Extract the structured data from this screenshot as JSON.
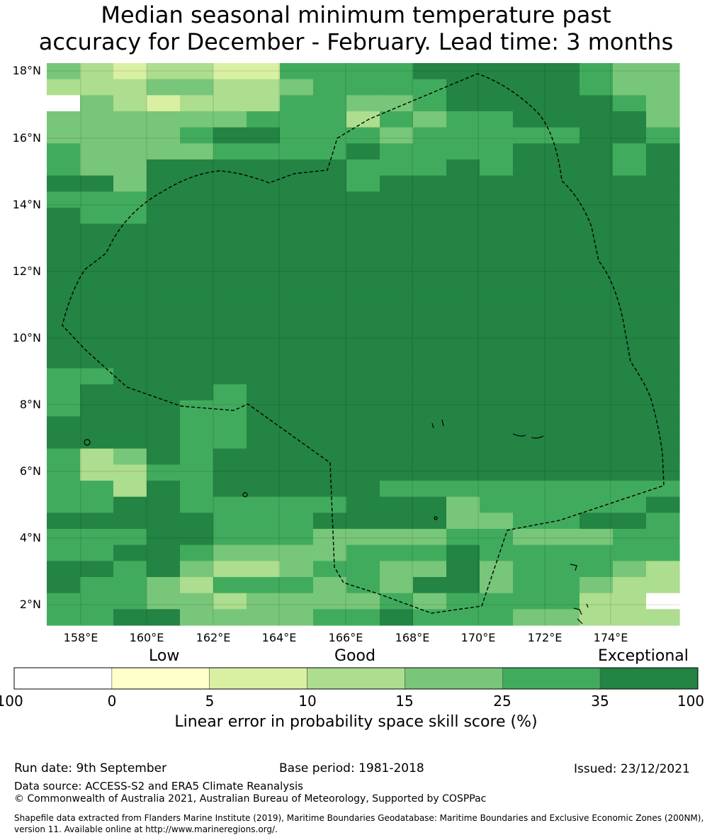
{
  "title_line1": "Median seasonal minimum temperature past",
  "title_line2": "accuracy for December - February. Lead time: 3 months",
  "map": {
    "lat_ticks": [
      "18°N",
      "16°N",
      "14°N",
      "12°N",
      "10°N",
      "8°N",
      "6°N",
      "4°N",
      "2°N"
    ],
    "lon_ticks": [
      "158°E",
      "160°E",
      "162°E",
      "164°E",
      "166°E",
      "168°E",
      "170°E",
      "172°E",
      "174°E"
    ],
    "colors": [
      "#ffffff",
      "#ffffcc",
      "#d9f0a3",
      "#addd8e",
      "#78c679",
      "#41ab5d",
      "#238443"
    ],
    "grid_rows": [
      "4323322555566666544",
      "3334433455556666544",
      "0432333554456666654",
      "4444445553545566664",
      "4444566555455555665",
      "5444455556555566656",
      "5446666665556566656",
      "6646666665666666666",
      "5556666666666666666",
      "6556666666666666666",
      "6666666666666666666",
      "6666666666666666666",
      "6666666666666666666",
      "6666666666666666666",
      "6666666666666666666",
      "6666666666666666666",
      "6666666666666666666",
      "6666666666666666666",
      "6666666666666666666",
      "5566666666666666666",
      "5666656666666666666",
      "5666556666666666666",
      "6666556666666666666",
      "6666556666666666666",
      "5346566666666666666",
      "5335566666666666666",
      "5536566666555555555",
      "5566555556664555556",
      "6666655566664455665",
      "5556655544445544455",
      "5566544445556555555",
      "6656433455446455543",
      "6554355545466455433",
      "5554434444545555330",
      "5566444455655544333"
    ]
  },
  "categories": {
    "low": "Low",
    "good": "Good",
    "exceptional": "Exceptional"
  },
  "colorbar": {
    "ticks": [
      "-100",
      "0",
      "5",
      "10",
      "15",
      "25",
      "35",
      "100"
    ],
    "colors": [
      "#ffffff",
      "#ffffcc",
      "#d9f0a3",
      "#addd8e",
      "#78c679",
      "#41ab5d",
      "#238443"
    ],
    "label": "Linear error in probability space skill score (%)"
  },
  "footer": {
    "run_date": "Run date: 9th September",
    "base_period": "Base period: 1981-2018",
    "issued": "Issued: 23/12/2021",
    "data_source": "Data source: ACCESS-S2 and ERA5 Climate Reanalysis",
    "copyright": "© Commonwealth of Australia 2021, Australian Bureau of Meteorology, Supported by COSPPac",
    "shapefile_line1": "Shapefile data extracted from Flanders Marine Institute (2019), Maritime Boundaries Geodatabase: Maritime Boundaries and Exclusive Economic Zones (200NM),",
    "shapefile_line2": "version 11. Available online at http://www.marineregions.org/."
  }
}
